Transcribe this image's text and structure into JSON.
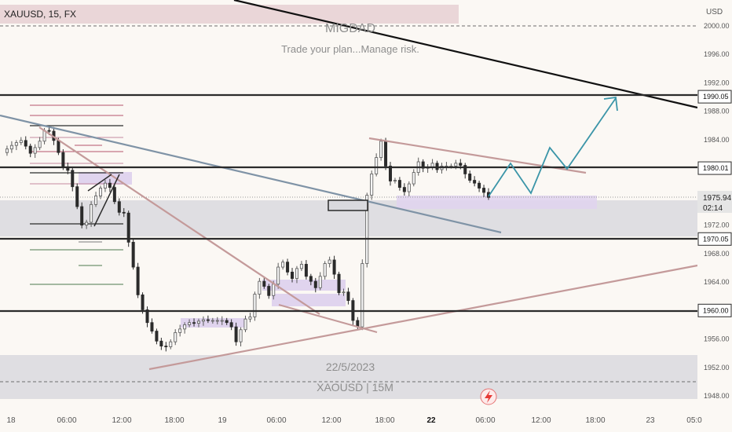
{
  "header": {
    "symbol": "XAUUSD, 15, FX"
  },
  "watermark": {
    "title": "MIGDAD",
    "tagline": "Trade your plan...Manage risk."
  },
  "bottom_band": {
    "date": "22/5/2023",
    "label": "XAOUSD | 15M"
  },
  "colors": {
    "background": "#fbf8f4",
    "up": "#5b5b5b",
    "down": "#2b2b2b",
    "level": "#2b2b2b",
    "trend": "#c49a9a",
    "channel": "#7f93a6",
    "forecast": "#3b95a8",
    "zone": "#d9d9de",
    "demand": "#e0d4ee"
  },
  "chart_data": {
    "type": "candlestick",
    "symbol": "XAUUSD",
    "timeframe": "15",
    "currency": "USD",
    "y_axis": {
      "unit": "USD",
      "ticks": [
        "1948.00",
        "1952.00",
        "1956.00",
        "1960.00",
        "1964.00",
        "1968.00",
        "1972.00",
        "1976.00",
        "1980.00",
        "1984.00",
        "1988.00",
        "1992.00",
        "1996.00",
        "2000.00"
      ],
      "range": [
        1947.5,
        2002.5
      ]
    },
    "x_axis": {
      "ticks": [
        "18",
        "06:00",
        "12:00",
        "18:00",
        "19",
        "06:00",
        "12:00",
        "18:00",
        "22",
        "06:00",
        "12:00",
        "18:00",
        "23",
        "05:0"
      ],
      "bold_ticks": [
        "22"
      ]
    },
    "price_labels": [
      {
        "text": "1990.05",
        "value": 1990.05
      },
      {
        "text": "1980.01",
        "value": 1980.01
      },
      {
        "text": "1970.05",
        "value": 1970.05
      },
      {
        "text": "1960.00",
        "value": 1960.0
      }
    ],
    "last_price": {
      "text": "1975.94",
      "countdown": "02:14",
      "value": 1975.94
    },
    "horizontal_levels": [
      1990.05,
      1980.01,
      1970.05,
      1960.0
    ],
    "dashed_levels": [
      2000.0,
      1949.8
    ],
    "zones": [
      {
        "name": "upper-zone",
        "from": 1970.8,
        "to": 1975.6
      },
      {
        "name": "lower-zone",
        "from": 1948.5,
        "to": 1953.5
      }
    ],
    "close_path": [
      1982.2,
      1982.7,
      1983.2,
      1983.6,
      1983.9,
      1983.1,
      1982.1,
      1982.9,
      1983.8,
      1985.3,
      1985.2,
      1983.9,
      1982.2,
      1980.2,
      1979.7,
      1977.4,
      1974.6,
      1972.0,
      1972.4,
      1974.9,
      1976.1,
      1977.2,
      1977.9,
      1977.3,
      1975.3,
      1973.8,
      1973.7,
      1969.6,
      1966.1,
      1962.2,
      1960.1,
      1958.3,
      1957.1,
      1955.7,
      1955.0,
      1954.9,
      1955.6,
      1956.9,
      1957.4,
      1958.0,
      1958.3,
      1958.2,
      1958.5,
      1958.7,
      1958.6,
      1958.6,
      1958.6,
      1958.6,
      1958.3,
      1957.7,
      1955.6,
      1957.3,
      1958.8,
      1959.1,
      1962.3,
      1964.1,
      1963.4,
      1962.1,
      1963.7,
      1966.1,
      1966.8,
      1965.4,
      1964.5,
      1965.9,
      1966.5,
      1964.8,
      1964.1,
      1963.2,
      1964.8,
      1966.6,
      1967.1,
      1965.1,
      1962.5,
      1962.6,
      1961.4,
      1958.6,
      1957.7,
      1966.6,
      1976.2,
      1979.2,
      1981.5,
      1983.8,
      1980.3,
      1978.2,
      1978.3,
      1977.3,
      1976.7,
      1977.8,
      1979.4,
      1980.9,
      1980.0,
      1980.1,
      1980.7,
      1979.8,
      1980.3,
      1980.3,
      1980.3,
      1980.7,
      1980.4,
      1979.2,
      1978.3,
      1977.9,
      1977.2,
      1976.6,
      1975.9
    ]
  },
  "annotations": {
    "forecast_target": 1990.05
  }
}
